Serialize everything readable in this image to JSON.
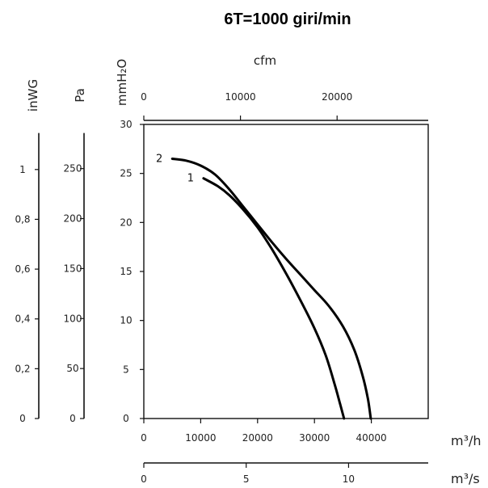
{
  "chart_data": {
    "type": "line",
    "title": "6T=1000 giri/min",
    "x_axes": {
      "top": {
        "label": "cfm",
        "ticks": [
          "0",
          "10000",
          "20000"
        ]
      },
      "bottom_m3h": {
        "unit": "m³/h",
        "ticks": [
          "0",
          "10000",
          "20000",
          "30000",
          "40000"
        ],
        "xlim": [
          0,
          50000
        ]
      },
      "bottom_m3s": {
        "unit": "m³/s",
        "ticks": [
          "0",
          "5",
          "10"
        ]
      }
    },
    "y_axes": {
      "inWG": {
        "label": "inWG",
        "ticks": [
          "0",
          "0,2",
          "0,4",
          "0,6",
          "0,8",
          "1"
        ]
      },
      "Pa": {
        "label": "Pa",
        "ticks": [
          "0",
          "50",
          "100",
          "150",
          "200",
          "250"
        ]
      },
      "mmH2O": {
        "label": "mmH₂O",
        "ticks": [
          "0",
          "5",
          "10",
          "15",
          "20",
          "25",
          "30"
        ],
        "ylim": [
          0,
          30
        ]
      }
    },
    "grid": false,
    "series": [
      {
        "name": "1",
        "points": [
          [
            10500,
            24.5
          ],
          [
            13000,
            23.7
          ],
          [
            15000,
            22.8
          ],
          [
            17500,
            21.3
          ],
          [
            20000,
            19.5
          ],
          [
            22500,
            17.3
          ],
          [
            25000,
            14.8
          ],
          [
            27500,
            12.1
          ],
          [
            30000,
            9.2
          ],
          [
            32000,
            6.4
          ],
          [
            33500,
            3.6
          ],
          [
            34500,
            1.5
          ],
          [
            35200,
            0
          ]
        ]
      },
      {
        "name": "2",
        "points": [
          [
            5000,
            26.5
          ],
          [
            7500,
            26.3
          ],
          [
            10000,
            25.8
          ],
          [
            12500,
            24.9
          ],
          [
            15000,
            23.4
          ],
          [
            17500,
            21.6
          ],
          [
            20000,
            19.8
          ],
          [
            22500,
            18.0
          ],
          [
            25000,
            16.3
          ],
          [
            27500,
            14.7
          ],
          [
            30000,
            13.1
          ],
          [
            32500,
            11.5
          ],
          [
            35000,
            9.4
          ],
          [
            37000,
            7.0
          ],
          [
            38500,
            4.3
          ],
          [
            39400,
            2.0
          ],
          [
            39900,
            0
          ]
        ]
      }
    ]
  }
}
